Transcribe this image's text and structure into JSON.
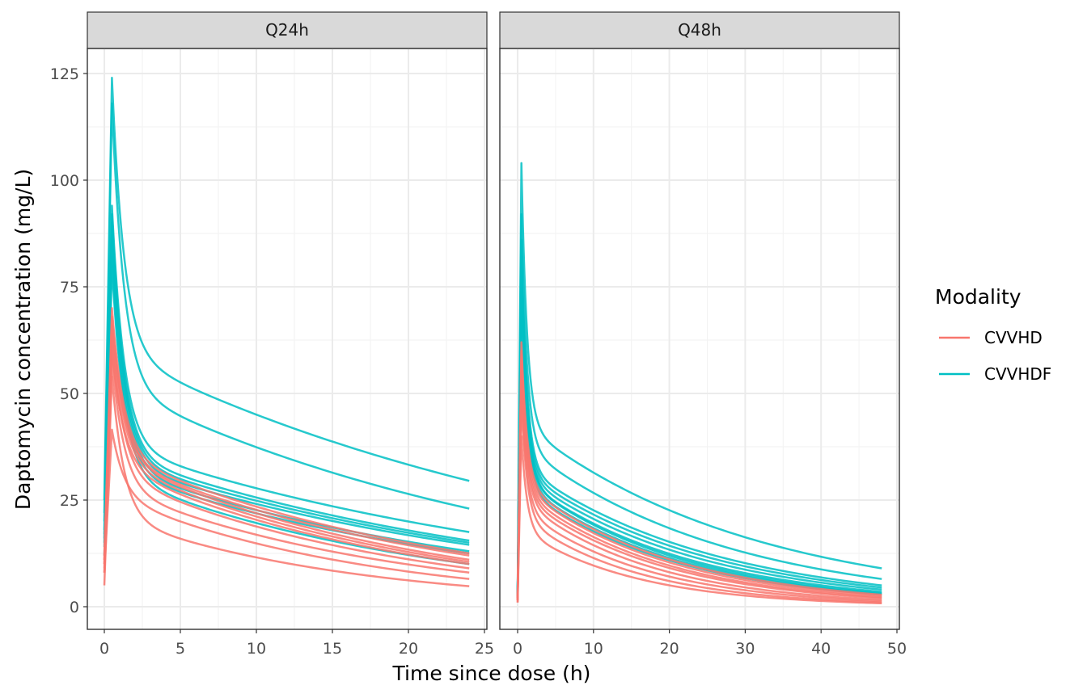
{
  "chart_data": {
    "type": "line",
    "xlabel": "Time since dose (h)",
    "ylabel": "Daptomycin concentration (mg/L)",
    "legend": {
      "title": "Modality",
      "position": "right",
      "entries": [
        {
          "label": "CVVHD",
          "color": "#F8766D"
        },
        {
          "label": "CVVHDF",
          "color": "#00BFC4"
        }
      ]
    },
    "grid": true,
    "ylim": [
      0,
      125
    ],
    "y_ticks": [
      0,
      25,
      50,
      75,
      100,
      125
    ],
    "panels": [
      {
        "strip": "Q24h",
        "xlim": [
          0,
          25
        ],
        "x_ticks": [
          0,
          5,
          10,
          15,
          20,
          25
        ],
        "peak_time": 0.5,
        "end_time": 24,
        "series": [
          {
            "modality": "CVVHDF",
            "start": 25,
            "peak": 124,
            "plateau": 60,
            "end": 29.5
          },
          {
            "modality": "CVVHDF",
            "start": 22,
            "peak": 118,
            "plateau": 52,
            "end": 23
          },
          {
            "modality": "CVVHDF",
            "start": 20,
            "peak": 94,
            "plateau": 38,
            "end": 17.5
          },
          {
            "modality": "CVVHDF",
            "start": 18,
            "peak": 92,
            "plateau": 36,
            "end": 15.5
          },
          {
            "modality": "CVVHDF",
            "start": 17,
            "peak": 90,
            "plateau": 35,
            "end": 15
          },
          {
            "modality": "CVVHDF",
            "start": 16,
            "peak": 88,
            "plateau": 34,
            "end": 14.5
          },
          {
            "modality": "CVVHDF",
            "start": 15,
            "peak": 86,
            "plateau": 33,
            "end": 13
          },
          {
            "modality": "CVVHDF",
            "start": 14,
            "peak": 82,
            "plateau": 32,
            "end": 12.5
          },
          {
            "modality": "CVVHDF",
            "start": 12,
            "peak": 80,
            "plateau": 31,
            "end": 10
          },
          {
            "modality": "CVVHD",
            "start": 12,
            "peak": 70,
            "plateau": 36,
            "end": 12.5
          },
          {
            "modality": "CVVHD",
            "start": 11,
            "peak": 68,
            "plateau": 35,
            "end": 12
          },
          {
            "modality": "CVVHD",
            "start": 11,
            "peak": 66,
            "plateau": 35,
            "end": 11
          },
          {
            "modality": "CVVHD",
            "start": 10,
            "peak": 64,
            "plateau": 34,
            "end": 10.5
          },
          {
            "modality": "CVVHD",
            "start": 10,
            "peak": 60,
            "plateau": 33,
            "end": 10
          },
          {
            "modality": "CVVHD",
            "start": 9,
            "peak": 62,
            "plateau": 31,
            "end": 9
          },
          {
            "modality": "CVVHD",
            "start": 8,
            "peak": 58,
            "plateau": 28,
            "end": 8
          },
          {
            "modality": "CVVHD",
            "start": 8,
            "peak": 41.5,
            "plateau": 26,
            "end": 6.5
          },
          {
            "modality": "CVVHD",
            "start": 5,
            "peak": 54,
            "plateau": 21,
            "end": 4.8
          }
        ]
      },
      {
        "strip": "Q48h",
        "xlim": [
          0,
          50
        ],
        "x_ticks": [
          0,
          10,
          20,
          30,
          40,
          50
        ],
        "peak_time": 0.5,
        "end_time": 48,
        "series": [
          {
            "modality": "CVVHDF",
            "start": 3,
            "peak": 104,
            "plateau": 43,
            "end": 9
          },
          {
            "modality": "CVVHDF",
            "start": 3,
            "peak": 92,
            "plateau": 38,
            "end": 6.5
          },
          {
            "modality": "CVVHDF",
            "start": 2.5,
            "peak": 86,
            "plateau": 33,
            "end": 5
          },
          {
            "modality": "CVVHDF",
            "start": 2.5,
            "peak": 82,
            "plateau": 32,
            "end": 4.5
          },
          {
            "modality": "CVVHDF",
            "start": 2,
            "peak": 80,
            "plateau": 31,
            "end": 4
          },
          {
            "modality": "CVVHDF",
            "start": 2,
            "peak": 78,
            "plateau": 30,
            "end": 3.5
          },
          {
            "modality": "CVVHDF",
            "start": 2,
            "peak": 76,
            "plateau": 30,
            "end": 3.2
          },
          {
            "modality": "CVVHDF",
            "start": 2,
            "peak": 74,
            "plateau": 29,
            "end": 3
          },
          {
            "modality": "CVVHDF",
            "start": 2,
            "peak": 72,
            "plateau": 28,
            "end": 2.8
          },
          {
            "modality": "CVVHD",
            "start": 2,
            "peak": 62,
            "plateau": 29,
            "end": 2.8
          },
          {
            "modality": "CVVHD",
            "start": 2,
            "peak": 60,
            "plateau": 28,
            "end": 2.5
          },
          {
            "modality": "CVVHD",
            "start": 2,
            "peak": 58,
            "plateau": 27,
            "end": 2.2
          },
          {
            "modality": "CVVHD",
            "start": 1.5,
            "peak": 55,
            "plateau": 26,
            "end": 2
          },
          {
            "modality": "CVVHD",
            "start": 1.5,
            "peak": 53,
            "plateau": 25,
            "end": 1.6
          },
          {
            "modality": "CVVHD",
            "start": 1.5,
            "peak": 50,
            "plateau": 23,
            "end": 1.3
          },
          {
            "modality": "CVVHD",
            "start": 1,
            "peak": 48,
            "plateau": 21,
            "end": 1
          },
          {
            "modality": "CVVHD",
            "start": 1,
            "peak": 40,
            "plateau": 18,
            "end": 0.8
          }
        ]
      }
    ]
  }
}
